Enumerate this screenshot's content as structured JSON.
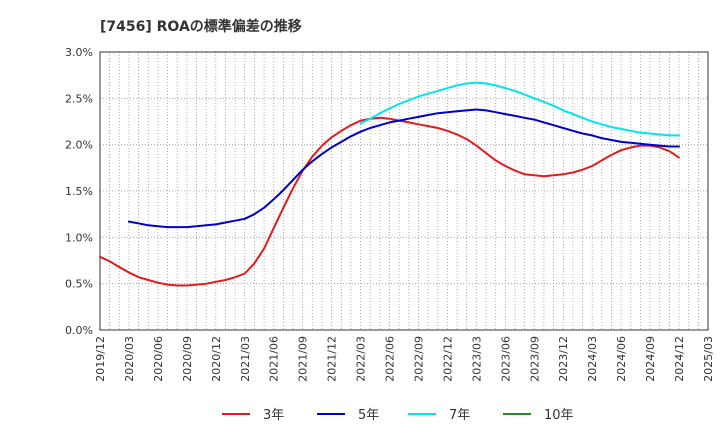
{
  "chart_data": {
    "type": "line",
    "title": "[7456]  ROAの標準偏差の推移",
    "xlabel": "",
    "ylabel": "",
    "ylim": [
      0,
      0.03
    ],
    "grid": true,
    "legend_position": "bottom",
    "y_ticks": [
      "0.0%",
      "0.5%",
      "1.0%",
      "1.5%",
      "2.0%",
      "2.5%",
      "3.0%"
    ],
    "x_ticks": [
      "2019/12",
      "2020/03",
      "2020/06",
      "2020/09",
      "2020/12",
      "2021/03",
      "2021/06",
      "2021/09",
      "2021/12",
      "2022/03",
      "2022/06",
      "2022/09",
      "2022/12",
      "2023/03",
      "2023/06",
      "2023/09",
      "2023/12",
      "2024/03",
      "2024/06",
      "2024/09",
      "2024/12",
      "2025/03"
    ],
    "series": [
      {
        "name": "3年",
        "color": "#e41a1c",
        "x": [
          "2019/12",
          "2020/01",
          "2020/02",
          "2020/03",
          "2020/04",
          "2020/05",
          "2020/06",
          "2020/07",
          "2020/08",
          "2020/09",
          "2020/10",
          "2020/11",
          "2020/12",
          "2021/01",
          "2021/02",
          "2021/03",
          "2021/04",
          "2021/05",
          "2021/06",
          "2021/07",
          "2021/08",
          "2021/09",
          "2021/10",
          "2021/11",
          "2021/12",
          "2022/01",
          "2022/02",
          "2022/03",
          "2022/04",
          "2022/05",
          "2022/06",
          "2022/07",
          "2022/08",
          "2022/09",
          "2022/10",
          "2022/11",
          "2022/12",
          "2023/01",
          "2023/02",
          "2023/03",
          "2023/04",
          "2023/05",
          "2023/06",
          "2023/07",
          "2023/08",
          "2023/09",
          "2023/10",
          "2023/11",
          "2023/12",
          "2024/01",
          "2024/02",
          "2024/03",
          "2024/04",
          "2024/05",
          "2024/06",
          "2024/07",
          "2024/08",
          "2024/09",
          "2024/10",
          "2024/11",
          "2024/12"
        ],
        "values": [
          0.0079,
          0.0074,
          0.0068,
          0.0062,
          0.0057,
          0.0054,
          0.0051,
          0.0049,
          0.0048,
          0.0048,
          0.0049,
          0.005,
          0.0052,
          0.0054,
          0.0057,
          0.0061,
          0.0072,
          0.0088,
          0.011,
          0.0132,
          0.0153,
          0.0172,
          0.0187,
          0.0199,
          0.0208,
          0.0215,
          0.0221,
          0.0226,
          0.0228,
          0.0229,
          0.0228,
          0.0226,
          0.0224,
          0.0222,
          0.022,
          0.0218,
          0.0215,
          0.0211,
          0.0206,
          0.0199,
          0.0191,
          0.0183,
          0.0177,
          0.0172,
          0.0168,
          0.0167,
          0.0166,
          0.0167,
          0.0168,
          0.017,
          0.0173,
          0.0177,
          0.0183,
          0.0189,
          0.0194,
          0.0197,
          0.0199,
          0.0199,
          0.0197,
          0.0193,
          0.0186
        ]
      },
      {
        "name": "5年",
        "color": "#0000cc",
        "x": [
          "2020/03",
          "2020/04",
          "2020/05",
          "2020/06",
          "2020/07",
          "2020/08",
          "2020/09",
          "2020/10",
          "2020/11",
          "2020/12",
          "2021/01",
          "2021/02",
          "2021/03",
          "2021/04",
          "2021/05",
          "2021/06",
          "2021/07",
          "2021/08",
          "2021/09",
          "2021/10",
          "2021/11",
          "2021/12",
          "2022/01",
          "2022/02",
          "2022/03",
          "2022/04",
          "2022/05",
          "2022/06",
          "2022/07",
          "2022/08",
          "2022/09",
          "2022/10",
          "2022/11",
          "2022/12",
          "2023/01",
          "2023/02",
          "2023/03",
          "2023/04",
          "2023/05",
          "2023/06",
          "2023/07",
          "2023/08",
          "2023/09",
          "2023/10",
          "2023/11",
          "2023/12",
          "2024/01",
          "2024/02",
          "2024/03",
          "2024/04",
          "2024/05",
          "2024/06",
          "2024/07",
          "2024/08",
          "2024/09",
          "2024/10",
          "2024/11",
          "2024/12"
        ],
        "values": [
          0.0117,
          0.0115,
          0.0113,
          0.0112,
          0.0111,
          0.0111,
          0.0111,
          0.0112,
          0.0113,
          0.0114,
          0.0116,
          0.0118,
          0.012,
          0.0125,
          0.0132,
          0.0141,
          0.0151,
          0.0162,
          0.0173,
          0.0182,
          0.019,
          0.0197,
          0.0203,
          0.0209,
          0.0214,
          0.0218,
          0.0221,
          0.0224,
          0.0226,
          0.0228,
          0.023,
          0.0232,
          0.0234,
          0.0235,
          0.0236,
          0.0237,
          0.0238,
          0.0237,
          0.0235,
          0.0233,
          0.0231,
          0.0229,
          0.0227,
          0.0224,
          0.0221,
          0.0218,
          0.0215,
          0.0212,
          0.021,
          0.0207,
          0.0205,
          0.0203,
          0.0202,
          0.0201,
          0.02,
          0.0199,
          0.0198,
          0.0198
        ]
      },
      {
        "name": "7年",
        "color": "#00e5ee",
        "x": [
          "2022/03",
          "2022/04",
          "2022/05",
          "2022/06",
          "2022/07",
          "2022/08",
          "2022/09",
          "2022/10",
          "2022/11",
          "2022/12",
          "2023/01",
          "2023/02",
          "2023/03",
          "2023/04",
          "2023/05",
          "2023/06",
          "2023/07",
          "2023/08",
          "2023/09",
          "2023/10",
          "2023/11",
          "2023/12",
          "2024/01",
          "2024/02",
          "2024/03",
          "2024/04",
          "2024/05",
          "2024/06",
          "2024/07",
          "2024/08",
          "2024/09",
          "2024/10",
          "2024/11",
          "2024/12"
        ],
        "values": [
          0.0223,
          0.0228,
          0.0234,
          0.0239,
          0.0244,
          0.0248,
          0.0252,
          0.0255,
          0.0258,
          0.0261,
          0.0264,
          0.0266,
          0.0267,
          0.0266,
          0.0264,
          0.0261,
          0.0258,
          0.0254,
          0.025,
          0.0246,
          0.0242,
          0.0237,
          0.0233,
          0.0229,
          0.0225,
          0.0222,
          0.0219,
          0.0217,
          0.0215,
          0.0213,
          0.0212,
          0.0211,
          0.021,
          0.021
        ]
      },
      {
        "name": "10年",
        "color": "#228b22",
        "x": [],
        "values": []
      }
    ]
  }
}
